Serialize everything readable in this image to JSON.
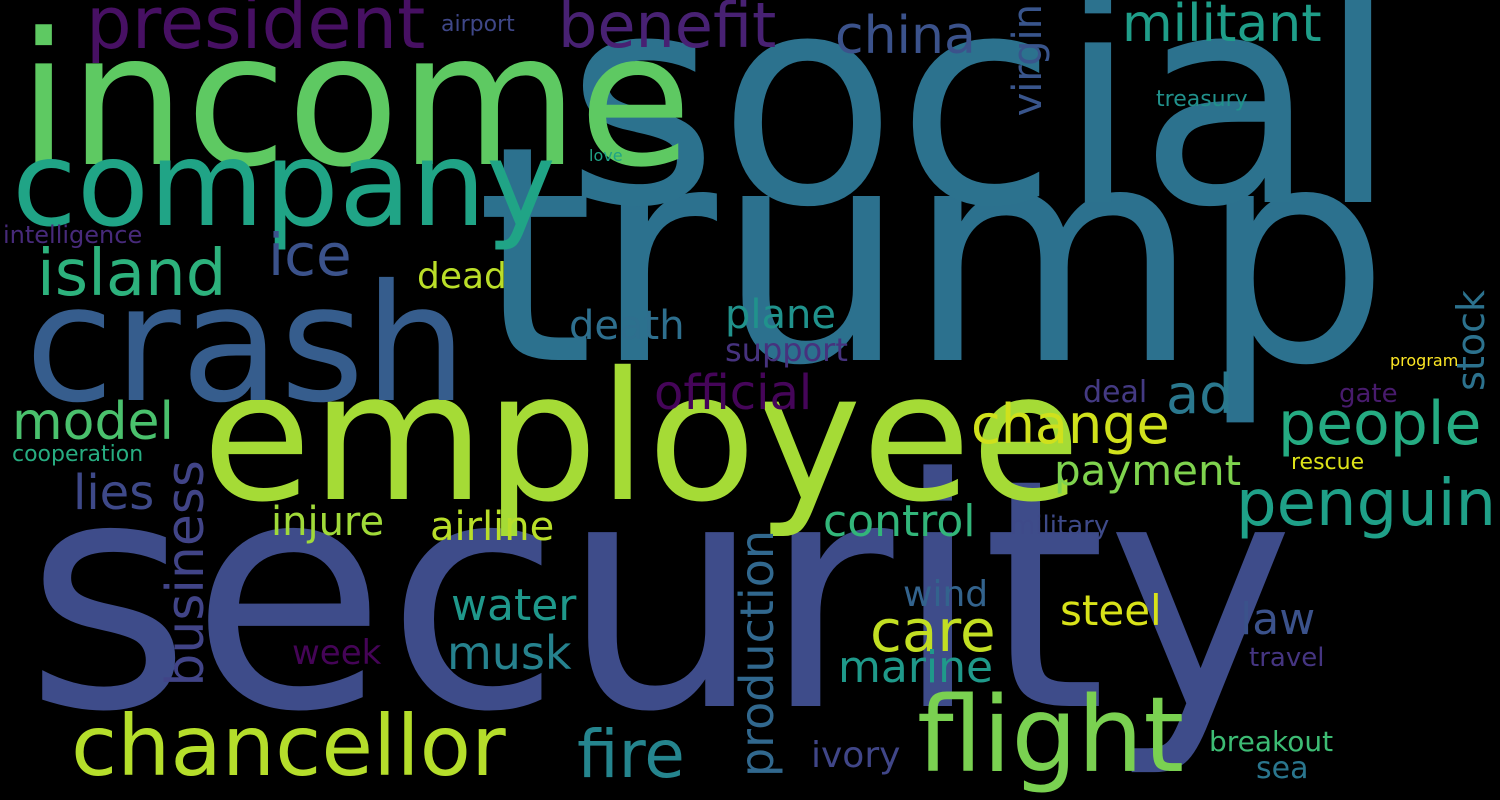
{
  "colors": {
    "background": "#000000",
    "palette": {
      "dark_purple": "#440154",
      "indigo": "#443a83",
      "blue": "#3e4c8a",
      "steel_blue": "#31688e",
      "teal": "#21918c",
      "green_teal": "#22a884",
      "green": "#44bf70",
      "light_green": "#7ad151",
      "lime": "#bddf26",
      "yellow": "#fde725"
    }
  },
  "words": [
    {
      "text": "security",
      "color": "#3e4c8a"
    },
    {
      "text": "trump",
      "color": "#2c718e"
    },
    {
      "text": "social",
      "color": "#2c728e"
    },
    {
      "text": "employee",
      "color": "#a5db36"
    },
    {
      "text": "income",
      "color": "#5ec962"
    },
    {
      "text": "crash",
      "color": "#365d8d"
    },
    {
      "text": "company",
      "color": "#20a486"
    },
    {
      "text": "chancellor",
      "color": "#b5de2b"
    },
    {
      "text": "flight",
      "color": "#7ad151"
    },
    {
      "text": "president",
      "color": "#471063"
    },
    {
      "text": "benefit",
      "color": "#482173"
    },
    {
      "text": "china",
      "color": "#3b528b"
    },
    {
      "text": "militant",
      "color": "#1f9e89"
    },
    {
      "text": "island",
      "color": "#2db27d"
    },
    {
      "text": "ice",
      "color": "#3b528b"
    },
    {
      "text": "penguin",
      "color": "#1fa088"
    },
    {
      "text": "people",
      "color": "#25ab82"
    },
    {
      "text": "change",
      "color": "#d0e11c"
    },
    {
      "text": "care",
      "color": "#c2df23"
    },
    {
      "text": "fire",
      "color": "#25858e"
    },
    {
      "text": "official",
      "color": "#450559"
    },
    {
      "text": "model",
      "color": "#4ac16d"
    },
    {
      "text": "ad",
      "color": "#2a788e"
    },
    {
      "text": "lies",
      "color": "#3e4989"
    },
    {
      "text": "payment",
      "color": "#7fd34e"
    },
    {
      "text": "control",
      "color": "#32b67a"
    },
    {
      "text": "business",
      "color": "#414487"
    },
    {
      "text": "production",
      "color": "#31688e"
    },
    {
      "text": "musk",
      "color": "#26828e"
    },
    {
      "text": "marine",
      "color": "#1f998a"
    },
    {
      "text": "water",
      "color": "#1f988b"
    },
    {
      "text": "virgin",
      "color": "#39558c"
    },
    {
      "text": "plane",
      "color": "#20928c"
    },
    {
      "text": "death",
      "color": "#2e6f8e"
    },
    {
      "text": "airline",
      "color": "#b8de29"
    },
    {
      "text": "injure",
      "color": "#a0da39"
    },
    {
      "text": "steel",
      "color": "#d8e219"
    },
    {
      "text": "law",
      "color": "#3b528b"
    },
    {
      "text": "dead",
      "color": "#bade28"
    },
    {
      "text": "support",
      "color": "#46327e"
    },
    {
      "text": "stock",
      "color": "#2c728e"
    },
    {
      "text": "wind",
      "color": "#33638d"
    },
    {
      "text": "ivory",
      "color": "#404688"
    },
    {
      "text": "week",
      "color": "#450457"
    },
    {
      "text": "breakout",
      "color": "#3dbc74"
    },
    {
      "text": "sea",
      "color": "#2a768e"
    },
    {
      "text": "deal",
      "color": "#443a83"
    },
    {
      "text": "gate",
      "color": "#481b6d"
    },
    {
      "text": "military",
      "color": "#3e4a89"
    },
    {
      "text": "travel",
      "color": "#453581"
    },
    {
      "text": "rescue",
      "color": "#dde318"
    },
    {
      "text": "airport",
      "color": "#3f4788"
    },
    {
      "text": "treasury",
      "color": "#21918c"
    },
    {
      "text": "intelligence",
      "color": "#472a7a"
    },
    {
      "text": "cooperation",
      "color": "#27ad81"
    },
    {
      "text": "love",
      "color": "#20a386"
    },
    {
      "text": "program",
      "color": "#fde725"
    }
  ]
}
